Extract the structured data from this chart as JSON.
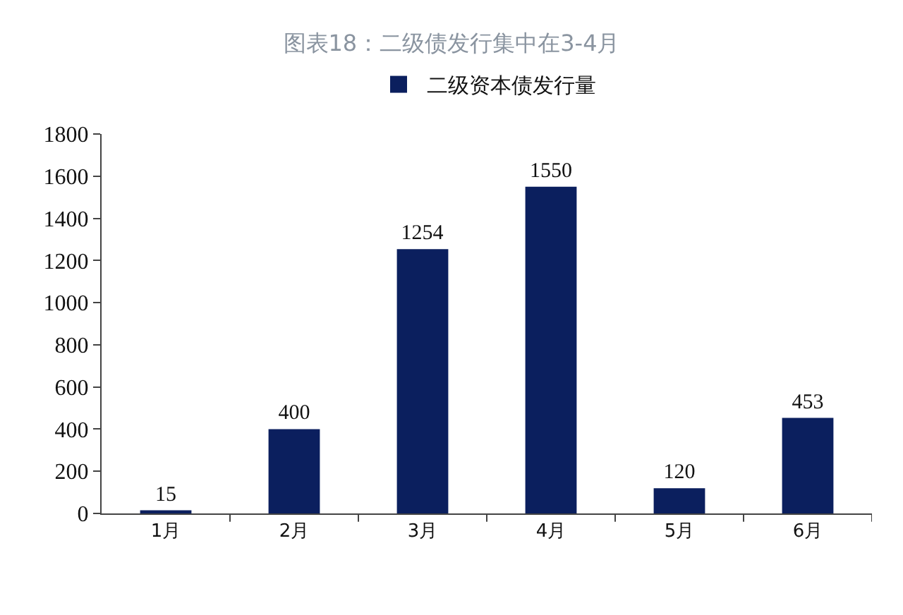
{
  "chart_data": {
    "type": "bar",
    "title": "图表18：二级债发行集中在3-4月",
    "categories": [
      "1月",
      "2月",
      "3月",
      "4月",
      "5月",
      "6月"
    ],
    "series": [
      {
        "name": "二级资本债发行量",
        "color": "#0b1f5e",
        "values": [
          15,
          400,
          1254,
          1550,
          120,
          453
        ]
      }
    ],
    "ylim": [
      0,
      1800
    ],
    "yticks": [
      0,
      200,
      400,
      600,
      800,
      1000,
      1200,
      1400,
      1600,
      1800
    ],
    "data_labels": true,
    "legend": "top"
  }
}
